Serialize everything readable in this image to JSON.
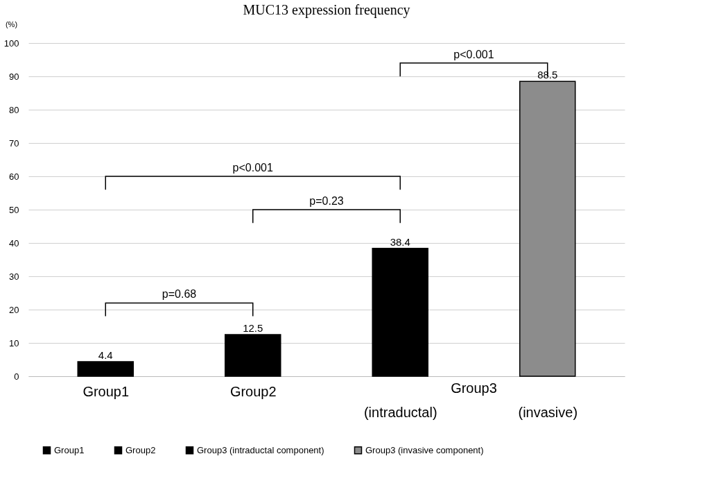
{
  "chart_data": {
    "type": "bar",
    "title": "MUC13 expression frequency",
    "ylabel": "(%)",
    "categories": [
      "Group1",
      "Group2",
      "(intraductal)",
      "(invasive)"
    ],
    "series": [
      {
        "name": "Group1",
        "color": "#000000",
        "values": [
          4.4,
          null,
          null,
          null
        ]
      },
      {
        "name": "Group2",
        "color": "#000000",
        "values": [
          null,
          12.5,
          null,
          null
        ]
      },
      {
        "name": "Group3 (intraductal component)",
        "color": "#000000",
        "values": [
          null,
          null,
          38.4,
          null
        ]
      },
      {
        "name": "Group3 (invasive component)",
        "color": "#8c8c8c",
        "values": [
          null,
          null,
          null,
          88.5
        ]
      }
    ],
    "ylim": [
      0,
      100
    ],
    "yticks": [
      0,
      10,
      20,
      30,
      40,
      50,
      60,
      70,
      80,
      90,
      100
    ],
    "grid": "y",
    "legend": "bottom",
    "data_labels": true,
    "annotations": [
      "p=0.68",
      "p=0.23",
      "p<0.001",
      "p<0.001",
      "Group3"
    ]
  }
}
